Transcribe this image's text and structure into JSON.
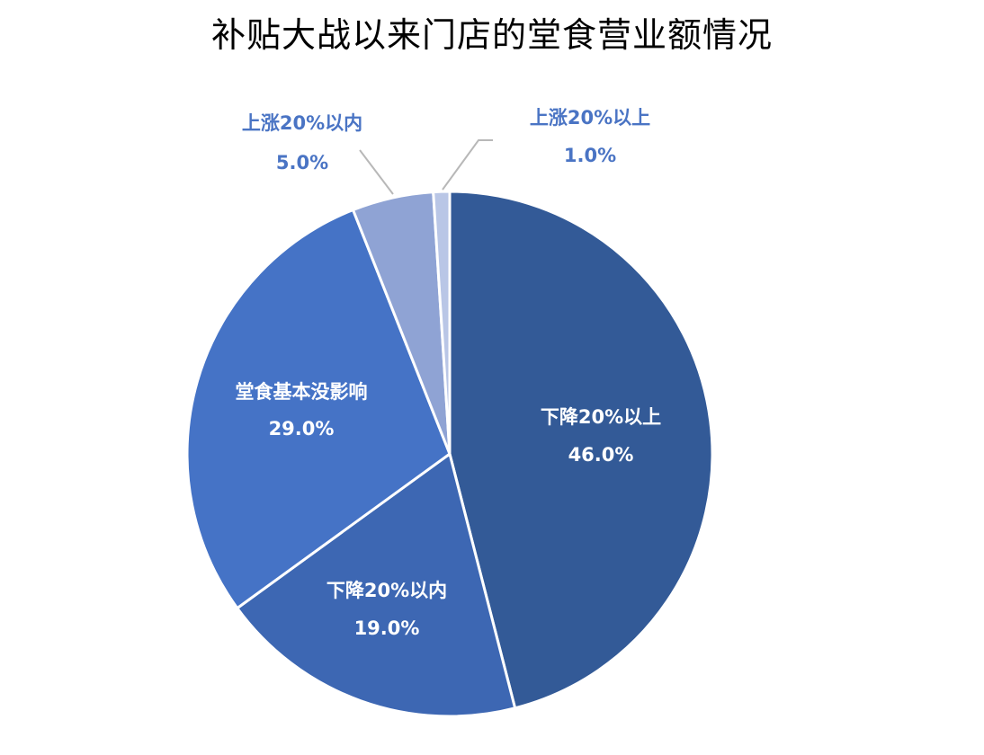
{
  "chart_data": {
    "type": "pie",
    "title": "补贴大战以来门店的堂食营业额情况",
    "slices": [
      {
        "label": "下降20%以上",
        "value": 46.0,
        "value_label": "46.0%",
        "color": "#335A97",
        "label_color": "#ffffff"
      },
      {
        "label": "下降20%以内",
        "value": 19.0,
        "value_label": "19.0%",
        "color": "#3D67B3",
        "label_color": "#ffffff"
      },
      {
        "label": "堂食基本没影响",
        "value": 29.0,
        "value_label": "29.0%",
        "color": "#4573C6",
        "label_color": "#ffffff"
      },
      {
        "label": "上涨20%以内",
        "value": 5.0,
        "value_label": "5.0%",
        "color": "#8FA3D4",
        "label_color": "#4A74C4"
      },
      {
        "label": "上涨20%以上",
        "value": 1.0,
        "value_label": "1.0%",
        "color": "#B9C6E6",
        "label_color": "#4A74C4"
      }
    ],
    "start_angle_deg": 0,
    "direction": "clockwise",
    "legend": "none"
  }
}
